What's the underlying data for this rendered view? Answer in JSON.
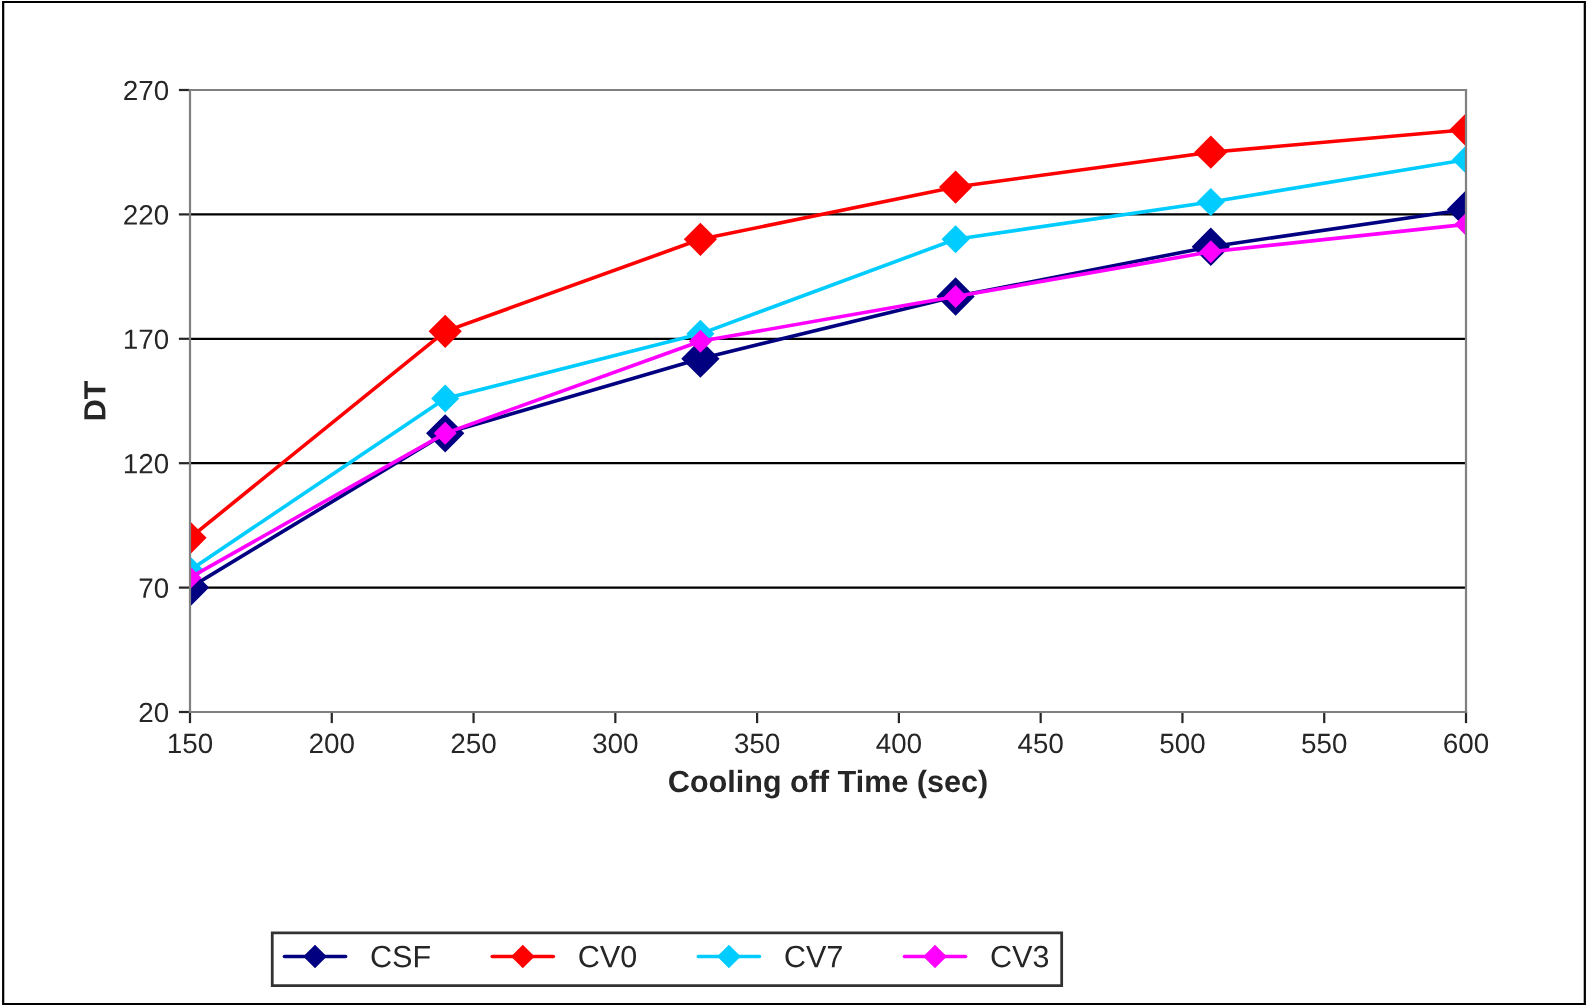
{
  "chart_data": {
    "type": "line",
    "xlabel": "Cooling off Time (sec)",
    "ylabel": "DT",
    "x": [
      150,
      240,
      330,
      420,
      510,
      600
    ],
    "series": [
      {
        "name": "CSF",
        "color": "#000080",
        "values": [
          70,
          132,
          162,
          187,
          207,
          222
        ]
      },
      {
        "name": "CV0",
        "color": "#ff0000",
        "values": [
          90,
          173,
          210,
          231,
          245,
          254
        ]
      },
      {
        "name": "CV7",
        "color": "#00ccff",
        "values": [
          77,
          146,
          172,
          210,
          225,
          242
        ]
      },
      {
        "name": "CV3",
        "color": "#ff00ff",
        "values": [
          74,
          132,
          169,
          187,
          205,
          216
        ]
      }
    ],
    "xlim": [
      150,
      600
    ],
    "xticks": [
      150,
      200,
      250,
      300,
      350,
      400,
      450,
      500,
      550,
      600
    ],
    "ylim": [
      20,
      270
    ],
    "yticks": [
      20,
      70,
      120,
      170,
      220,
      270
    ],
    "grid": "y",
    "legend": "bottom",
    "marker": "diamond",
    "line_style": "solid"
  }
}
